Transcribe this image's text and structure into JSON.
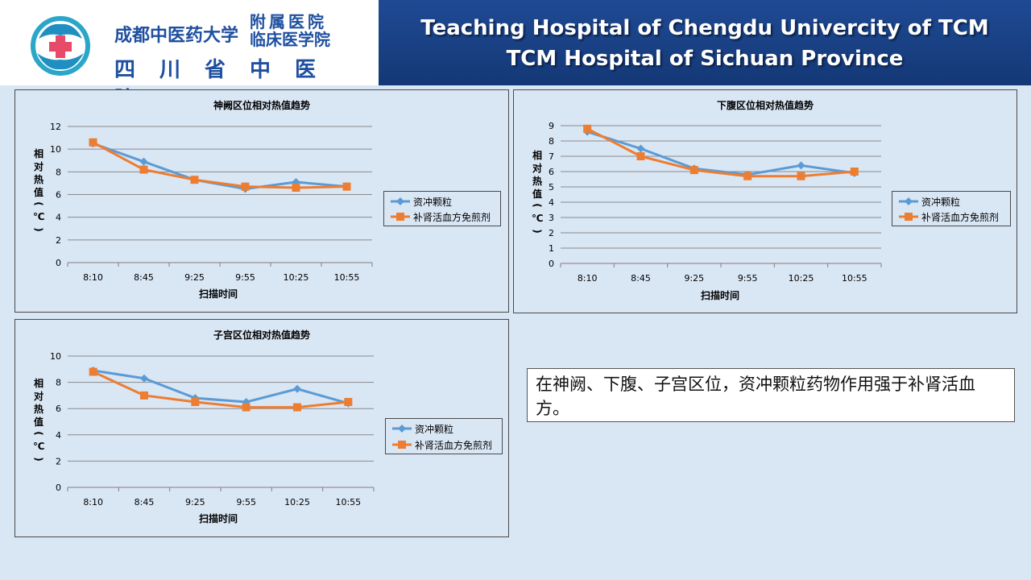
{
  "header": {
    "title_line1": "Teaching Hospital of Chengdu Univercity of TCM",
    "title_line2": "TCM Hospital of Sichuan Province",
    "logo_name_top": "成都中医药大学",
    "logo_badge_line1": "附属医院",
    "logo_badge_line2": "临床医学院",
    "logo_name_bottom": "四川省中医院"
  },
  "note": "在神阙、下腹、子宫区位，资冲颗粒药物作用强于补肾活血方。",
  "colors": {
    "series1": "#5b9bd5",
    "series2": "#ed7d31",
    "grid": "#8a8a8a"
  },
  "chart_data": [
    {
      "type": "line",
      "title": "神阙区位相对热值趋势",
      "xlabel": "扫描时间",
      "ylabel": "相对热值（℃）",
      "categories": [
        "8:10",
        "8:45",
        "9:25",
        "9:55",
        "10:25",
        "10:55"
      ],
      "ylim": [
        0,
        12
      ],
      "ytick_step": 2,
      "legend": "right",
      "series": [
        {
          "name": "资冲颗粒",
          "values": [
            10.5,
            8.9,
            7.3,
            6.5,
            7.1,
            6.7
          ]
        },
        {
          "name": "补肾活血方免煎剂",
          "values": [
            10.6,
            8.2,
            7.3,
            6.7,
            6.6,
            6.7
          ]
        }
      ]
    },
    {
      "type": "line",
      "title": "下腹区位相对热值趋势",
      "xlabel": "扫描时间",
      "ylabel": "相对热值（℃）",
      "categories": [
        "8:10",
        "8:45",
        "9:25",
        "9:55",
        "10:25",
        "10:55"
      ],
      "ylim": [
        0,
        9
      ],
      "ytick_step": 1,
      "legend": "right",
      "series": [
        {
          "name": "资冲颗粒",
          "values": [
            8.6,
            7.5,
            6.2,
            5.8,
            6.4,
            5.9
          ]
        },
        {
          "name": "补肾活血方免煎剂",
          "values": [
            8.8,
            7.0,
            6.1,
            5.7,
            5.7,
            6.0
          ]
        }
      ]
    },
    {
      "type": "line",
      "title": "子宫区位相对热值趋势",
      "xlabel": "扫描时间",
      "ylabel": "相对热值（℃）",
      "categories": [
        "8:10",
        "8:45",
        "9:25",
        "9:55",
        "10:25",
        "10:55"
      ],
      "ylim": [
        0,
        10
      ],
      "ytick_step": 2,
      "legend": "right",
      "series": [
        {
          "name": "资冲颗粒",
          "values": [
            8.9,
            8.3,
            6.8,
            6.5,
            7.5,
            6.4
          ]
        },
        {
          "name": "补肾活血方免煎剂",
          "values": [
            8.8,
            7.0,
            6.5,
            6.1,
            6.1,
            6.5
          ]
        }
      ]
    }
  ]
}
